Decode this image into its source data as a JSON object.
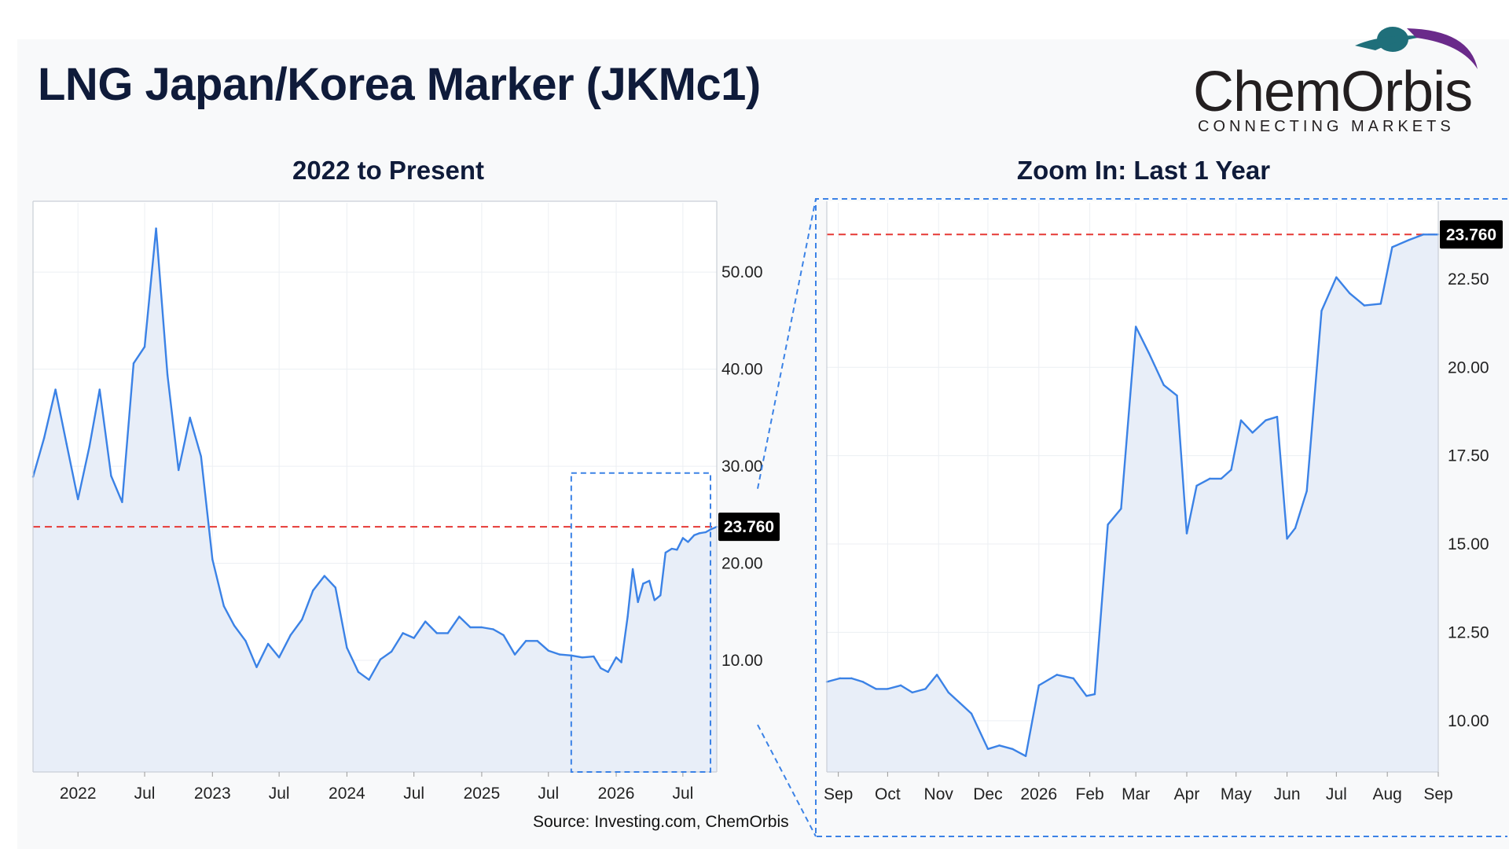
{
  "title": "LNG Japan/Korea Marker (JKMc1)",
  "logo": {
    "name": "ChemOrbis",
    "tagline": "CONNECTING MARKETS"
  },
  "source": "Source: Investing.com, ChemOrbis",
  "colors": {
    "line": "#3b82e6",
    "fill": "#e8eef8",
    "reference": "#e53935",
    "zoom_box": "#3b82e6",
    "badge": "#000000"
  },
  "chart_data": [
    {
      "type": "area",
      "title": "2022 to Present",
      "current_value_label": "23.760",
      "reference_line": 23.76,
      "ylim": [
        -1.5,
        57.3
      ],
      "yticks": [
        10,
        20,
        30,
        40,
        50
      ],
      "ytick_labels": [
        "10.00",
        "20.00",
        "30.00",
        "40.00",
        "50.00"
      ],
      "xlim": [
        "2021-09-01",
        "2026-10-01"
      ],
      "xticks": [
        "2022-01-01",
        "2022-07-01",
        "2023-01-01",
        "2023-07-01",
        "2024-01-01",
        "2024-07-01",
        "2025-01-01",
        "2025-07-01",
        "2026-01-01",
        "2026-07-01"
      ],
      "xtick_labels": [
        "2022",
        "Jul",
        "2023",
        "Jul",
        "2024",
        "Jul",
        "2025",
        "Jul",
        "2026",
        "Jul"
      ],
      "zoom_box": {
        "x_start": "2025-09-01",
        "x_end": "2026-10-01",
        "y_min": -1.5,
        "y_max": 29.3
      },
      "x": [
        "2021-09-01",
        "2021-10-01",
        "2021-11-01",
        "2021-12-01",
        "2022-01-01",
        "2022-02-01",
        "2022-03-01",
        "2022-04-01",
        "2022-05-01",
        "2022-06-01",
        "2022-07-01",
        "2022-08-01",
        "2022-09-01",
        "2022-10-01",
        "2022-11-01",
        "2022-12-01",
        "2023-01-01",
        "2023-02-01",
        "2023-03-01",
        "2023-04-01",
        "2023-05-01",
        "2023-06-01",
        "2023-07-01",
        "2023-08-01",
        "2023-09-01",
        "2023-10-01",
        "2023-11-01",
        "2023-12-01",
        "2024-01-01",
        "2024-02-01",
        "2024-03-01",
        "2024-04-01",
        "2024-05-01",
        "2024-06-01",
        "2024-07-01",
        "2024-08-01",
        "2024-09-01",
        "2024-10-01",
        "2024-11-01",
        "2024-12-01",
        "2025-01-01",
        "2025-02-01",
        "2025-03-01",
        "2025-04-01",
        "2025-05-01",
        "2025-06-01",
        "2025-07-01",
        "2025-08-01",
        "2025-09-01",
        "2025-10-01",
        "2025-11-01",
        "2025-11-20",
        "2025-12-10",
        "2026-01-01",
        "2026-01-15",
        "2026-02-01",
        "2026-02-15",
        "2026-03-01",
        "2026-03-15",
        "2026-04-01",
        "2026-04-15",
        "2026-05-01",
        "2026-05-15",
        "2026-06-01",
        "2026-06-15",
        "2026-07-01",
        "2026-07-15",
        "2026-08-01",
        "2026-08-15",
        "2026-09-01",
        "2026-09-15",
        "2026-10-01"
      ],
      "y": [
        28.9,
        32.9,
        37.9,
        32.3,
        26.6,
        32.0,
        37.9,
        29.0,
        26.3,
        40.6,
        42.3,
        54.5,
        39.4,
        29.6,
        35.0,
        31.0,
        20.4,
        15.6,
        13.6,
        12.0,
        9.3,
        11.7,
        10.3,
        12.6,
        14.2,
        17.2,
        18.7,
        17.5,
        11.3,
        8.8,
        8.0,
        10.1,
        10.9,
        12.8,
        12.3,
        14.0,
        12.8,
        12.8,
        14.5,
        13.4,
        13.4,
        13.2,
        12.6,
        10.6,
        12.0,
        12.0,
        11.0,
        10.6,
        10.5,
        10.3,
        10.4,
        9.2,
        8.8,
        10.3,
        9.8,
        14.5,
        19.4,
        16.0,
        17.9,
        18.2,
        16.2,
        16.7,
        21.1,
        21.5,
        21.4,
        22.6,
        22.2,
        22.9,
        23.1,
        23.2,
        23.5,
        23.76
      ]
    },
    {
      "type": "area",
      "title": "Zoom In: Last 1 Year",
      "current_value_label": "23.760",
      "reference_line": 23.76,
      "ylim": [
        8.55,
        24.7
      ],
      "yticks": [
        10,
        12.5,
        15,
        17.5,
        20,
        22.5
      ],
      "ytick_labels": [
        "10.00",
        "12.50",
        "15.00",
        "17.50",
        "20.00",
        "22.50"
      ],
      "xlim": [
        "2025-08-25",
        "2026-09-01"
      ],
      "xticks": [
        "2025-09-01",
        "2025-10-01",
        "2025-11-01",
        "2025-12-01",
        "2026-01-01",
        "2026-02-01",
        "2026-03-01",
        "2026-04-01",
        "2026-05-01",
        "2026-06-01",
        "2026-07-01",
        "2026-08-01",
        "2026-09-01"
      ],
      "xtick_labels": [
        "Sep",
        "Oct",
        "Nov",
        "Dec",
        "2026",
        "Feb",
        "Mar",
        "Apr",
        "May",
        "Jun",
        "Jul",
        "Aug",
        "Sep"
      ],
      "x": [
        "2025-08-25",
        "2025-09-02",
        "2025-09-09",
        "2025-09-16",
        "2025-09-24",
        "2025-10-01",
        "2025-10-09",
        "2025-10-16",
        "2025-10-24",
        "2025-10-31",
        "2025-11-07",
        "2025-11-14",
        "2025-11-21",
        "2025-12-01",
        "2025-12-08",
        "2025-12-16",
        "2025-12-24",
        "2026-01-01",
        "2026-01-12",
        "2026-01-22",
        "2026-01-30",
        "2026-02-04",
        "2026-02-12",
        "2026-02-20",
        "2026-03-01",
        "2026-03-09",
        "2026-03-18",
        "2026-03-26",
        "2026-04-01",
        "2026-04-07",
        "2026-04-15",
        "2026-04-22",
        "2026-04-28",
        "2026-05-04",
        "2026-05-11",
        "2026-05-19",
        "2026-05-26",
        "2026-06-01",
        "2026-06-06",
        "2026-06-13",
        "2026-06-22",
        "2026-07-01",
        "2026-07-09",
        "2026-07-18",
        "2026-07-28",
        "2026-08-04",
        "2026-08-14",
        "2026-08-23",
        "2026-09-01"
      ],
      "y": [
        11.1,
        11.2,
        11.2,
        11.1,
        10.9,
        10.9,
        11.0,
        10.8,
        10.9,
        11.3,
        10.8,
        10.5,
        10.2,
        9.2,
        9.3,
        9.2,
        9.0,
        11.0,
        11.3,
        11.2,
        10.7,
        10.75,
        15.55,
        16.0,
        21.15,
        20.4,
        19.5,
        19.2,
        15.3,
        16.65,
        16.85,
        16.85,
        17.1,
        18.5,
        18.15,
        18.5,
        18.6,
        15.15,
        15.45,
        16.5,
        21.6,
        22.55,
        22.1,
        21.75,
        21.8,
        23.4,
        23.6,
        23.76,
        23.76
      ]
    }
  ]
}
